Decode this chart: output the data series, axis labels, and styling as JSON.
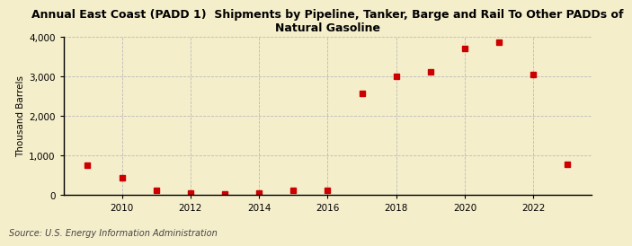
{
  "title": "Annual East Coast (PADD 1)  Shipments by Pipeline, Tanker, Barge and Rail To Other PADDs of\nNatural Gasoline",
  "ylabel": "Thousand Barrels",
  "source": "Source: U.S. Energy Information Administration",
  "background_color": "#f5eecb",
  "plot_background_color": "#f5eecb",
  "marker_color": "#cc0000",
  "marker_size": 4,
  "years": [
    2009,
    2010,
    2011,
    2012,
    2013,
    2014,
    2015,
    2016,
    2017,
    2018,
    2019,
    2020,
    2021,
    2022,
    2023
  ],
  "values": [
    750,
    430,
    120,
    50,
    30,
    60,
    120,
    110,
    2570,
    3000,
    3130,
    3700,
    3880,
    3060,
    780
  ],
  "xlim": [
    2008.3,
    2023.7
  ],
  "ylim": [
    0,
    4000
  ],
  "yticks": [
    0,
    1000,
    2000,
    3000,
    4000
  ],
  "ytick_labels": [
    "0",
    "1,000",
    "2,000",
    "3,000",
    "4,000"
  ],
  "xticks": [
    2010,
    2012,
    2014,
    2016,
    2018,
    2020,
    2022
  ],
  "grid_color": "#bbbbbb",
  "grid_style": "--",
  "title_fontsize": 9,
  "axis_fontsize": 7.5,
  "source_fontsize": 7
}
